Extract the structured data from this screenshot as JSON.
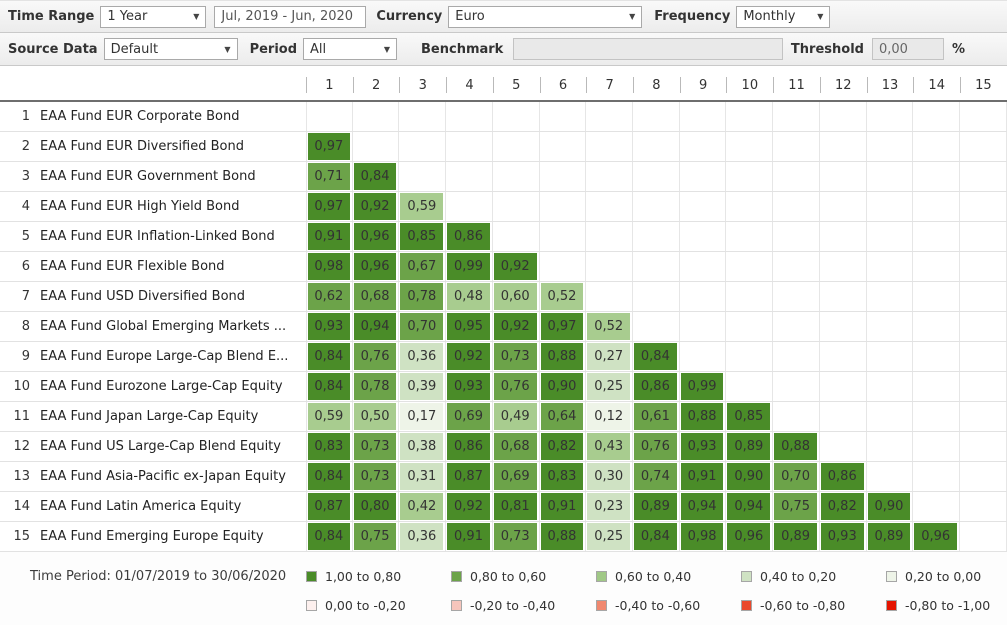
{
  "toolbar": {
    "time_range_label": "Time Range",
    "time_range_value": "1 Year",
    "date_range_value": "Jul, 2019 - Jun, 2020",
    "currency_label": "Currency",
    "currency_value": "Euro",
    "frequency_label": "Frequency",
    "frequency_value": "Monthly"
  },
  "toolbar2": {
    "source_data_label": "Source Data",
    "source_data_value": "Default",
    "period_label": "Period",
    "period_value": "All",
    "benchmark_label": "Benchmark",
    "benchmark_value": "",
    "threshold_label": "Threshold",
    "threshold_value": "0,00",
    "threshold_unit": "%"
  },
  "palette": {
    "cell_colors": [
      "#4a8c28",
      "#6ca349",
      "#a8cc8f",
      "#cfe2c3",
      "#eef4e8"
    ]
  },
  "chart_data": {
    "type": "heatmap",
    "title": "Correlation matrix (lower triangular)",
    "columns": [
      "1",
      "2",
      "3",
      "4",
      "5",
      "6",
      "7",
      "8",
      "9",
      "10",
      "11",
      "12",
      "13",
      "14",
      "15"
    ],
    "rows": [
      {
        "num": "1",
        "name": "EAA Fund EUR Corporate Bond",
        "values": []
      },
      {
        "num": "2",
        "name": "EAA Fund EUR Diversified Bond",
        "values": [
          "0,97"
        ]
      },
      {
        "num": "3",
        "name": "EAA Fund EUR Government Bond",
        "values": [
          "0,71",
          "0,84"
        ]
      },
      {
        "num": "4",
        "name": "EAA Fund EUR High Yield Bond",
        "values": [
          "0,97",
          "0,92",
          "0,59"
        ]
      },
      {
        "num": "5",
        "name": "EAA Fund EUR Inflation-Linked Bond",
        "values": [
          "0,91",
          "0,96",
          "0,85",
          "0,86"
        ]
      },
      {
        "num": "6",
        "name": "EAA Fund EUR Flexible Bond",
        "values": [
          "0,98",
          "0,96",
          "0,67",
          "0,99",
          "0,92"
        ]
      },
      {
        "num": "7",
        "name": "EAA Fund USD Diversified Bond",
        "values": [
          "0,62",
          "0,68",
          "0,78",
          "0,48",
          "0,60",
          "0,52"
        ]
      },
      {
        "num": "8",
        "name": "EAA Fund Global Emerging Markets ...",
        "values": [
          "0,93",
          "0,94",
          "0,70",
          "0,95",
          "0,92",
          "0,97",
          "0,52"
        ]
      },
      {
        "num": "9",
        "name": "EAA Fund Europe Large-Cap Blend E...",
        "values": [
          "0,84",
          "0,76",
          "0,36",
          "0,92",
          "0,73",
          "0,88",
          "0,27",
          "0,84"
        ]
      },
      {
        "num": "10",
        "name": "EAA Fund Eurozone Large-Cap Equity",
        "values": [
          "0,84",
          "0,78",
          "0,39",
          "0,93",
          "0,76",
          "0,90",
          "0,25",
          "0,86",
          "0,99"
        ]
      },
      {
        "num": "11",
        "name": "EAA Fund Japan Large-Cap Equity",
        "values": [
          "0,59",
          "0,50",
          "0,17",
          "0,69",
          "0,49",
          "0,64",
          "0,12",
          "0,61",
          "0,88",
          "0,85"
        ]
      },
      {
        "num": "12",
        "name": "EAA Fund US Large-Cap Blend Equity",
        "values": [
          "0,83",
          "0,73",
          "0,38",
          "0,86",
          "0,68",
          "0,82",
          "0,43",
          "0,76",
          "0,93",
          "0,89",
          "0,88"
        ]
      },
      {
        "num": "13",
        "name": "EAA Fund Asia-Pacific ex-Japan Equity",
        "values": [
          "0,84",
          "0,73",
          "0,31",
          "0,87",
          "0,69",
          "0,83",
          "0,30",
          "0,74",
          "0,91",
          "0,90",
          "0,70",
          "0,86"
        ]
      },
      {
        "num": "14",
        "name": "EAA Fund Latin America Equity",
        "values": [
          "0,87",
          "0,80",
          "0,42",
          "0,92",
          "0,81",
          "0,91",
          "0,23",
          "0,89",
          "0,94",
          "0,94",
          "0,75",
          "0,82",
          "0,90"
        ]
      },
      {
        "num": "15",
        "name": "EAA Fund Emerging Europe Equity",
        "values": [
          "0,84",
          "0,75",
          "0,36",
          "0,91",
          "0,73",
          "0,88",
          "0,25",
          "0,84",
          "0,98",
          "0,96",
          "0,89",
          "0,93",
          "0,89",
          "0,96"
        ]
      }
    ]
  },
  "footer": {
    "time_period": "Time Period: 01/07/2019 to 30/06/2020",
    "legend": [
      {
        "label": "1,00 to 0,80",
        "color": "#4a8c28"
      },
      {
        "label": "0,80 to 0,60",
        "color": "#6ca349"
      },
      {
        "label": "0,60 to 0,40",
        "color": "#a0c886"
      },
      {
        "label": "0,40 to 0,20",
        "color": "#cfe2c3"
      },
      {
        "label": "0,20 to 0,00",
        "color": "#eef4e8"
      },
      {
        "label": "0,00 to -0,20",
        "color": "#fdf0ee"
      },
      {
        "label": "-0,20 to -0,40",
        "color": "#f6c5bc"
      },
      {
        "label": "-0,40 to -0,60",
        "color": "#f0886f"
      },
      {
        "label": "-0,60 to -0,80",
        "color": "#ea492c"
      },
      {
        "label": "-0,80 to -1,00",
        "color": "#e51400"
      }
    ]
  }
}
